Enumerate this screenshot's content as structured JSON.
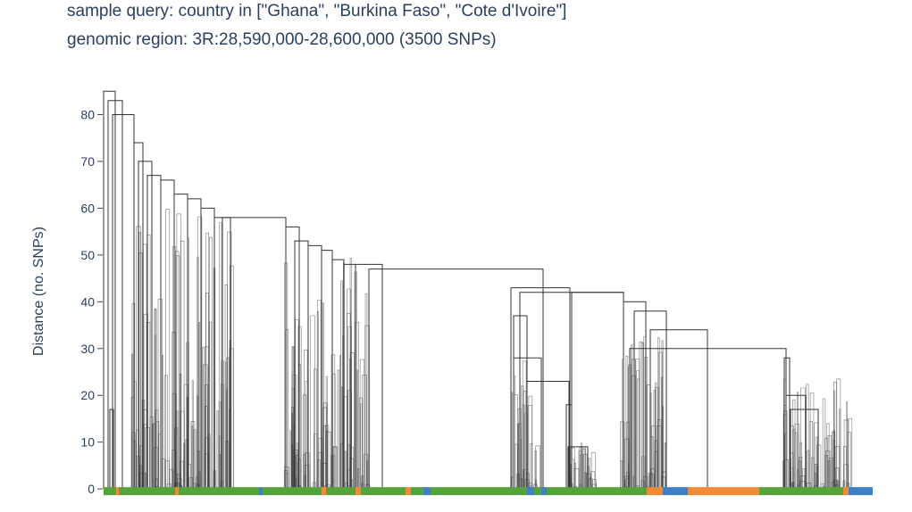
{
  "chart_data": {
    "type": "dendrogram",
    "title_lines": [
      "sample query: country in [\"Ghana\", \"Burkina Faso\", \"Cote d'Ivoire\"]",
      "genomic region: 3R:28,590,000-28,600,000 (3500 SNPs)"
    ],
    "ylabel": "Distance (no. SNPs)",
    "xlabel": "",
    "ylim": [
      -1.5,
      86
    ],
    "y_ticks": [
      0,
      10,
      20,
      30,
      40,
      50,
      60,
      70,
      80
    ],
    "grid": false,
    "legend": "none",
    "major_merges": [
      {
        "left": 116,
        "right": 129,
        "height": 85
      },
      {
        "left": 121,
        "right": 137,
        "height": 83
      },
      {
        "left": 126,
        "right": 150,
        "height": 80
      },
      {
        "left": 150,
        "right": 160,
        "height": 74
      },
      {
        "left": 155,
        "right": 170,
        "height": 70
      },
      {
        "left": 165,
        "right": 180,
        "height": 67
      },
      {
        "left": 180,
        "right": 195,
        "height": 66
      },
      {
        "left": 195,
        "right": 210,
        "height": 63
      },
      {
        "left": 210,
        "right": 225,
        "height": 62
      },
      {
        "left": 225,
        "right": 240,
        "height": 60
      },
      {
        "left": 240,
        "right": 258,
        "height": 58
      },
      {
        "left": 249,
        "right": 320,
        "height": 58
      },
      {
        "left": 320,
        "right": 335,
        "height": 56
      },
      {
        "left": 330,
        "right": 345,
        "height": 53
      },
      {
        "left": 345,
        "right": 360,
        "height": 52
      },
      {
        "left": 360,
        "right": 372,
        "height": 51
      },
      {
        "left": 372,
        "right": 385,
        "height": 49
      },
      {
        "left": 385,
        "right": 398,
        "height": 48
      },
      {
        "left": 398,
        "right": 428,
        "height": 48
      },
      {
        "left": 413,
        "right": 608,
        "height": 47
      },
      {
        "left": 572,
        "right": 638,
        "height": 43
      },
      {
        "left": 582,
        "right": 698,
        "height": 42
      },
      {
        "left": 640,
        "right": 698,
        "height": 42
      },
      {
        "left": 698,
        "right": 723,
        "height": 40
      },
      {
        "left": 710,
        "right": 746,
        "height": 38
      },
      {
        "left": 728,
        "right": 792,
        "height": 34
      },
      {
        "left": 705,
        "right": 880,
        "height": 30
      },
      {
        "left": 575,
        "right": 590,
        "height": 37
      },
      {
        "left": 575,
        "right": 606,
        "height": 28
      },
      {
        "left": 590,
        "right": 637,
        "height": 23
      },
      {
        "left": 636,
        "right": 658,
        "height": 9
      },
      {
        "left": 634,
        "right": 640,
        "height": 18
      },
      {
        "left": 878,
        "right": 884,
        "height": 28
      },
      {
        "left": 880,
        "right": 902,
        "height": 20
      },
      {
        "left": 885,
        "right": 916,
        "height": 17
      },
      {
        "left": 123,
        "right": 127,
        "height": 17
      }
    ],
    "leaf_color_segments": [
      {
        "from": 116,
        "to": 130,
        "color": "green"
      },
      {
        "from": 130,
        "to": 133,
        "color": "orange"
      },
      {
        "from": 133,
        "to": 196,
        "color": "green"
      },
      {
        "from": 196,
        "to": 200,
        "color": "orange"
      },
      {
        "from": 200,
        "to": 290,
        "color": "green"
      },
      {
        "from": 290,
        "to": 294,
        "color": "blue"
      },
      {
        "from": 294,
        "to": 360,
        "color": "green"
      },
      {
        "from": 360,
        "to": 365,
        "color": "orange"
      },
      {
        "from": 365,
        "to": 398,
        "color": "green"
      },
      {
        "from": 398,
        "to": 404,
        "color": "orange"
      },
      {
        "from": 404,
        "to": 454,
        "color": "green"
      },
      {
        "from": 454,
        "to": 460,
        "color": "orange"
      },
      {
        "from": 460,
        "to": 474,
        "color": "green"
      },
      {
        "from": 474,
        "to": 482,
        "color": "blue"
      },
      {
        "from": 482,
        "to": 590,
        "color": "green"
      },
      {
        "from": 590,
        "to": 598,
        "color": "blue"
      },
      {
        "from": 598,
        "to": 606,
        "color": "green"
      },
      {
        "from": 606,
        "to": 612,
        "color": "blue"
      },
      {
        "from": 612,
        "to": 724,
        "color": "green"
      },
      {
        "from": 724,
        "to": 742,
        "color": "orange"
      },
      {
        "from": 742,
        "to": 770,
        "color": "blue"
      },
      {
        "from": 770,
        "to": 850,
        "color": "orange"
      },
      {
        "from": 850,
        "to": 944,
        "color": "green"
      },
      {
        "from": 944,
        "to": 950,
        "color": "orange"
      },
      {
        "from": 950,
        "to": 977,
        "color": "blue"
      }
    ],
    "colors": {
      "green": "#56a33c",
      "orange": "#ef8a37",
      "blue": "#3f7fc6",
      "branch": "#333333"
    }
  }
}
